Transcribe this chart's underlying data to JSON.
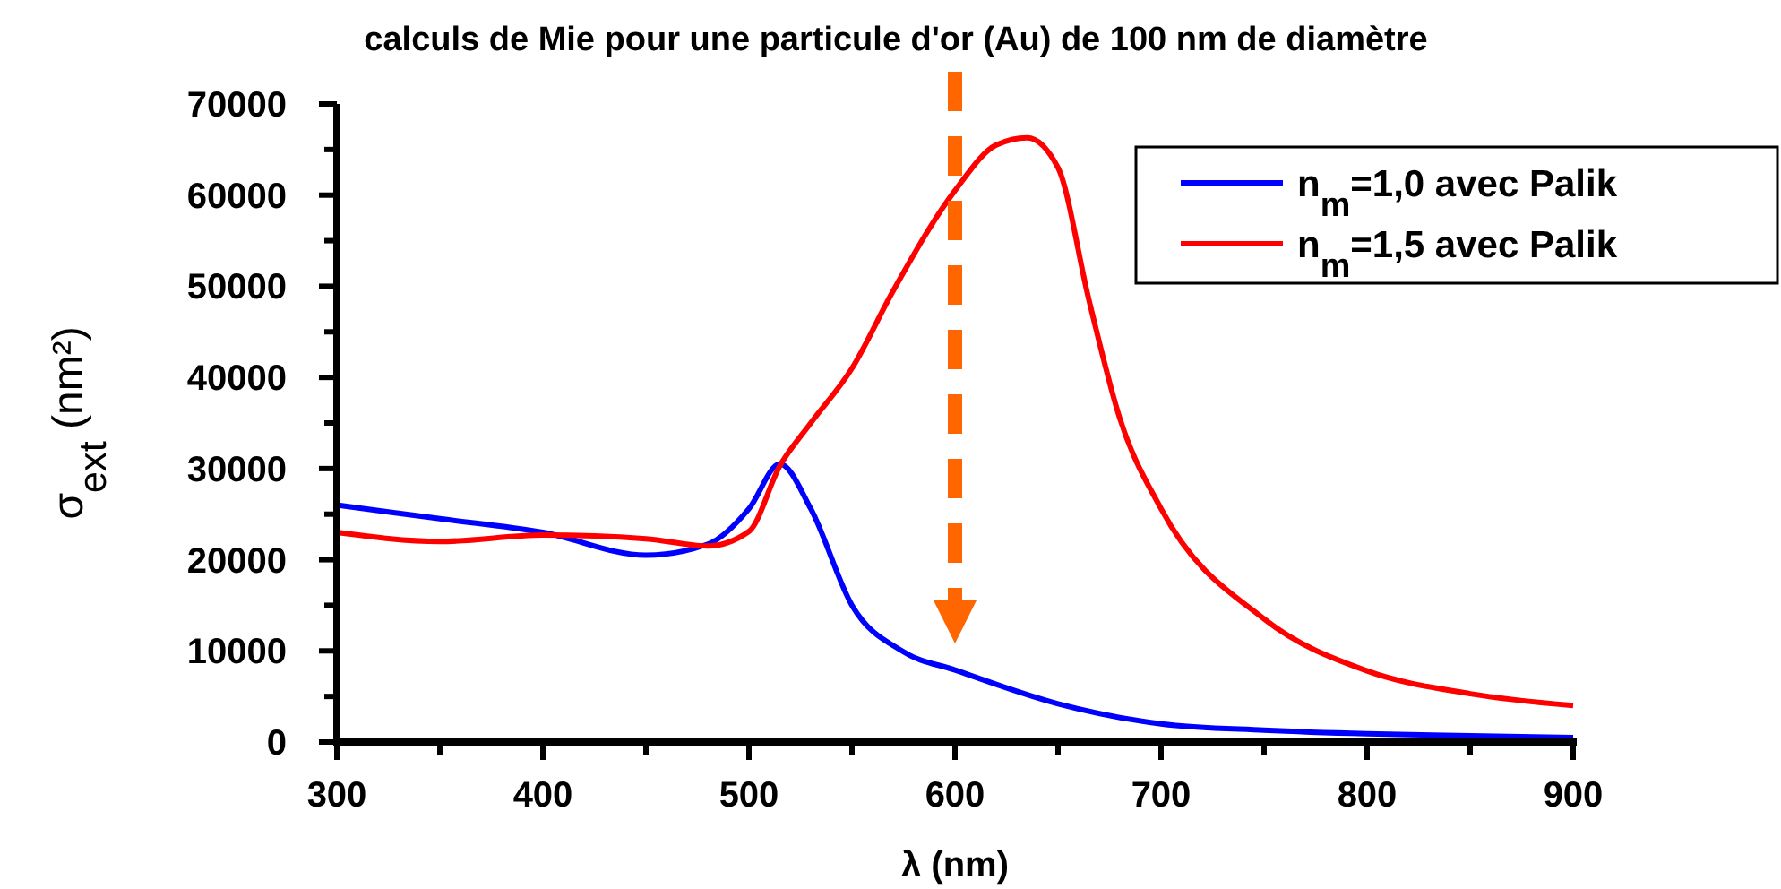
{
  "chart_data": {
    "type": "line",
    "title": "calculs de Mie pour une particule d'or (Au) de 100 nm de diamètre",
    "xlabel": "λ (nm)",
    "ylabel": "σ$_{ext}$ (nm²)",
    "xlim": [
      300,
      900
    ],
    "ylim": [
      0,
      70000
    ],
    "xticks": [
      300,
      {
        "value": 350,
        "label": null
      },
      400,
      {
        "value": 450,
        "label": null
      },
      500,
      {
        "value": 550,
        "label": null
      },
      600,
      {
        "value": 650,
        "label": null
      },
      700,
      {
        "value": 750,
        "label": null
      },
      800,
      {
        "value": 850,
        "label": null
      },
      900
    ],
    "yticks": [
      0,
      {
        "value": 5000,
        "label": null
      },
      10000,
      {
        "value": 15000,
        "label": null
      },
      20000,
      {
        "value": 25000,
        "label": null
      },
      30000,
      {
        "value": 35000,
        "label": null
      },
      40000,
      {
        "value": 45000,
        "label": null
      },
      50000,
      {
        "value": 55000,
        "label": null
      },
      60000,
      {
        "value": 65000,
        "label": null
      },
      70000
    ],
    "grid": false,
    "legend": "top right",
    "marker": "none",
    "line_style": "solid",
    "ref_lines": [
      {
        "axis": "x",
        "value": 600,
        "color": "#ff6600",
        "line_style": "dashed"
      }
    ],
    "series": [
      {
        "name": "n$_{m}$=1,0 avec Palik",
        "color": "#0000ff",
        "x": [
          300,
          350,
          400,
          450,
          480,
          500,
          515,
          530,
          550,
          575,
          600,
          650,
          700,
          750,
          800,
          850,
          900
        ],
        "values": [
          26000,
          24500,
          23000,
          20500,
          21700,
          25600,
          30500,
          25600,
          15000,
          9900,
          7900,
          4200,
          2000,
          1300,
          900,
          700,
          500
        ]
      },
      {
        "name": "n$_{m}$=1,5 avec Palik",
        "color": "#ff0000",
        "x": [
          300,
          350,
          400,
          450,
          480,
          500,
          515,
          530,
          550,
          570,
          600,
          620,
          635,
          650,
          665,
          680,
          700,
          750,
          800,
          850,
          900
        ],
        "values": [
          23000,
          22000,
          22700,
          22300,
          21500,
          23100,
          30300,
          35000,
          41000,
          49500,
          60500,
          65500,
          66300,
          63000,
          48500,
          35500,
          25600,
          13500,
          7800,
          5300,
          4000
        ]
      }
    ]
  }
}
